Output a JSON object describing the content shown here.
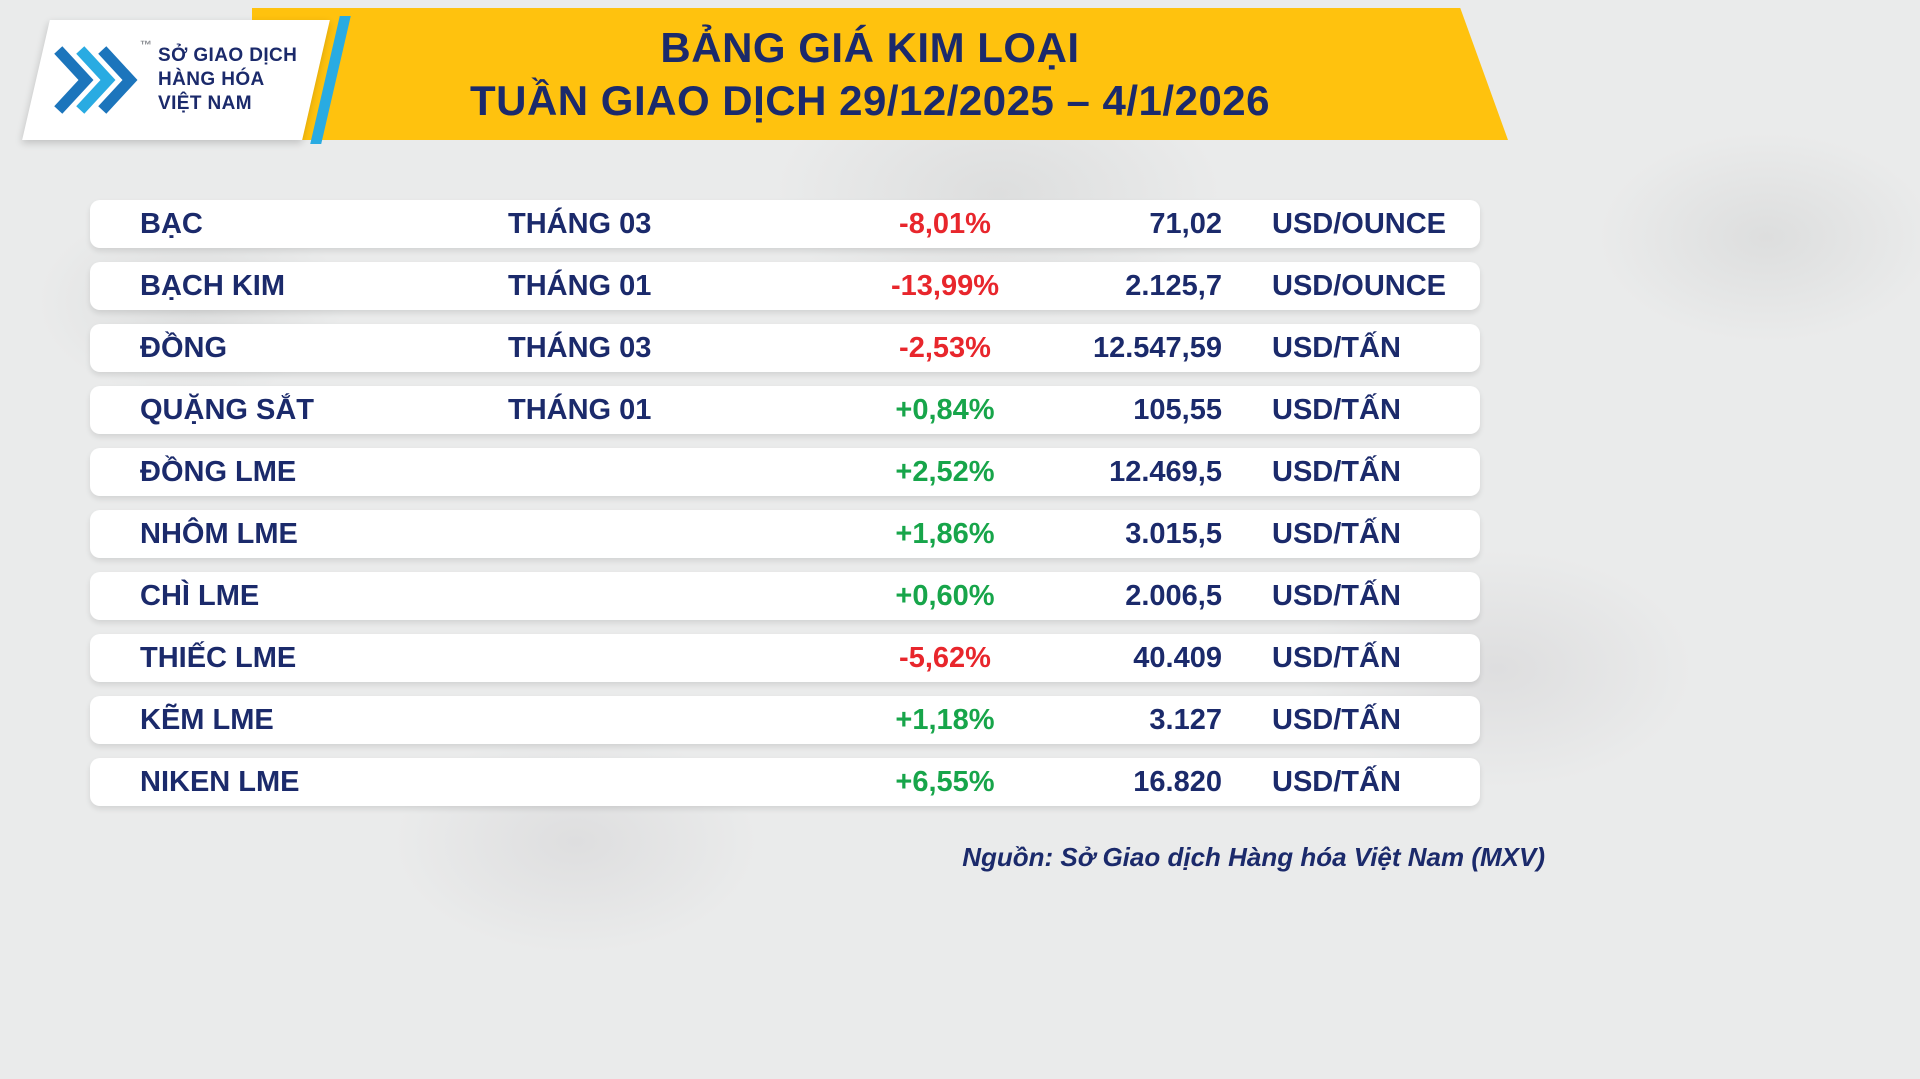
{
  "logo": {
    "org_line1": "SỞ GIAO DỊCH",
    "org_line2": "HÀNG HÓA",
    "org_line3": "VIỆT NAM",
    "trademark": "™"
  },
  "header": {
    "title_line1": "BẢNG GIÁ KIM LOẠI",
    "title_line2": "TUẦN GIAO DỊCH 29/12/2025 – 4/1/2026"
  },
  "chart_data": {
    "type": "table",
    "title": "BẢNG GIÁ KIM LOẠI",
    "subtitle": "TUẦN GIAO DỊCH 29/12/2025 – 4/1/2026",
    "rows": [
      {
        "name": "BẠC",
        "month": "THÁNG 03",
        "change": "-8,01%",
        "change_pct": -8.01,
        "trend": "down",
        "value": "71,02",
        "value_num": 71.02,
        "unit": "USD/OUNCE"
      },
      {
        "name": "BẠCH KIM",
        "month": "THÁNG 01",
        "change": "-13,99%",
        "change_pct": -13.99,
        "trend": "down",
        "value": "2.125,7",
        "value_num": 2125.7,
        "unit": "USD/OUNCE"
      },
      {
        "name": "ĐỒNG",
        "month": "THÁNG 03",
        "change": "-2,53%",
        "change_pct": -2.53,
        "trend": "down",
        "value": "12.547,59",
        "value_num": 12547.59,
        "unit": "USD/TẤN"
      },
      {
        "name": "QUẶNG SẮT",
        "month": "THÁNG 01",
        "change": "+0,84%",
        "change_pct": 0.84,
        "trend": "up",
        "value": "105,55",
        "value_num": 105.55,
        "unit": "USD/TẤN"
      },
      {
        "name": "ĐỒNG LME",
        "month": "",
        "change": "+2,52%",
        "change_pct": 2.52,
        "trend": "up",
        "value": "12.469,5",
        "value_num": 12469.5,
        "unit": "USD/TẤN"
      },
      {
        "name": "NHÔM LME",
        "month": "",
        "change": "+1,86%",
        "change_pct": 1.86,
        "trend": "up",
        "value": "3.015,5",
        "value_num": 3015.5,
        "unit": "USD/TẤN"
      },
      {
        "name": "CHÌ LME",
        "month": "",
        "change": "+0,60%",
        "change_pct": 0.6,
        "trend": "up",
        "value": "2.006,5",
        "value_num": 2006.5,
        "unit": "USD/TẤN"
      },
      {
        "name": "THIẾC LME",
        "month": "",
        "change": "-5,62%",
        "change_pct": -5.62,
        "trend": "down",
        "value": "40.409",
        "value_num": 40409,
        "unit": "USD/TẤN"
      },
      {
        "name": "KẼM LME",
        "month": "",
        "change": "+1,18%",
        "change_pct": 1.18,
        "trend": "up",
        "value": "3.127",
        "value_num": 3127,
        "unit": "USD/TẤN"
      },
      {
        "name": "NIKEN LME",
        "month": "",
        "change": "+6,55%",
        "change_pct": 6.55,
        "trend": "up",
        "value": "16.820",
        "value_num": 16820,
        "unit": "USD/TẤN"
      }
    ]
  },
  "footer": {
    "source": "Nguồn: Sở Giao dịch Hàng hóa Việt Nam (MXV)"
  },
  "colors": {
    "navy": "#1b2a6b",
    "red": "#e8262c",
    "green": "#17a54a",
    "yellow": "#ffc20e",
    "cyan": "#29abe2",
    "background": "#eaebeb"
  }
}
